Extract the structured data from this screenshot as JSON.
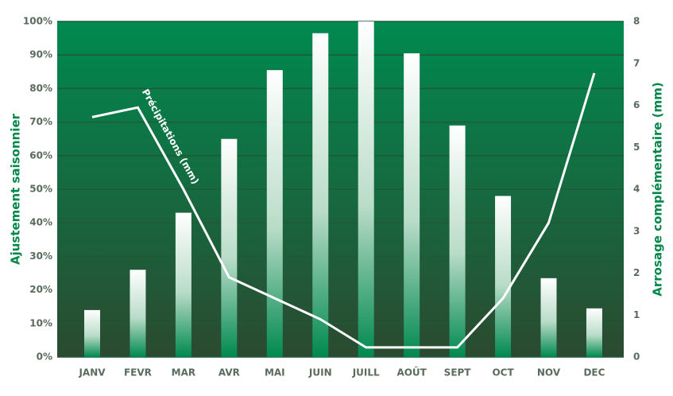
{
  "chart_data": {
    "type": "bar-line",
    "y_label": "Ajustement saisonnier",
    "y2_label": "Arrosage complémentaire (mm)",
    "categories": [
      "JANV",
      "FEVR",
      "MAR",
      "AVR",
      "MAI",
      "JUIN",
      "JUILL",
      "AOÛT",
      "SEPT",
      "OCT",
      "NOV",
      "DEC"
    ],
    "series": [
      {
        "type": "bar",
        "color": "#ffffff",
        "values": [
          14,
          26,
          43,
          65,
          85.5,
          96.5,
          100,
          90.5,
          69,
          48,
          23.5,
          14.5
        ]
      },
      {
        "type": "line",
        "name": "Précipitations (mm)",
        "color": "#ffffff",
        "axis": "y2",
        "values": [
          5.72,
          5.95,
          4.0,
          1.9,
          1.4,
          0.9,
          0.23,
          0.23,
          0.23,
          1.4,
          3.2,
          6.77
        ]
      }
    ],
    "ylim": [
      0,
      100
    ],
    "yticks": [
      {
        "value": 0,
        "label": "0%"
      },
      {
        "value": 10,
        "label": "10%"
      },
      {
        "value": 20,
        "label": "20%"
      },
      {
        "value": 30,
        "label": "30%"
      },
      {
        "value": 40,
        "label": "40%"
      },
      {
        "value": 50,
        "label": "50%"
      },
      {
        "value": 60,
        "label": "60%"
      },
      {
        "value": 70,
        "label": "70%"
      },
      {
        "value": 80,
        "label": "80%"
      },
      {
        "value": 90,
        "label": "90%"
      },
      {
        "value": 100,
        "label": "100%"
      }
    ],
    "y2lim": [
      0,
      8
    ],
    "y2ticks": [
      0,
      1,
      2,
      3,
      4,
      5,
      6,
      7,
      8
    ],
    "grid": true
  }
}
